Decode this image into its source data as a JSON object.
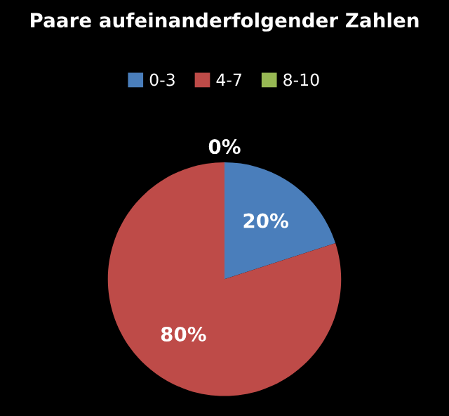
{
  "chart_data": {
    "type": "pie",
    "title": "Paare aufeinanderfolgender Zahlen",
    "categories": [
      "0-3",
      "4-7",
      "8-10"
    ],
    "values": [
      20,
      80,
      0
    ],
    "colors": [
      "#4a7ebb",
      "#be4b48",
      "#98b954"
    ],
    "value_labels": [
      "20%",
      "80%",
      "0%"
    ],
    "legend": "top"
  }
}
